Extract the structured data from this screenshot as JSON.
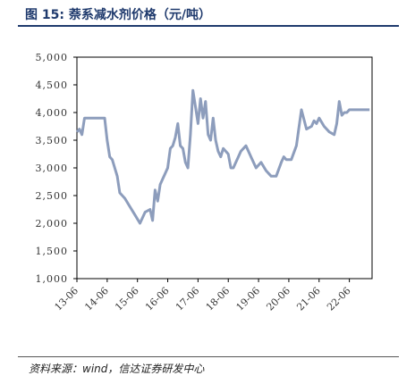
{
  "header": {
    "title": "图 15:  萘系减水剂价格（元/吨）"
  },
  "footer": {
    "source": "资料来源：wind，信达证券研发中心"
  },
  "colors": {
    "line": "#8d9dbc",
    "title": "#1f3a6d"
  },
  "chart_data": {
    "type": "line",
    "title": "",
    "xlabel": "",
    "ylabel": "",
    "grid": false,
    "legend": "none",
    "ylim": [
      1000,
      5000
    ],
    "yticks": [
      1000,
      1500,
      2000,
      2500,
      3000,
      3500,
      4000,
      4500,
      5000
    ],
    "ytick_labels": [
      "1,000",
      "1,500",
      "2,000",
      "2,500",
      "3,000",
      "3,500",
      "4,000",
      "4,500",
      "5,000"
    ],
    "xlim": [
      "2013-06",
      "2023-03"
    ],
    "xtick_labels": [
      "13-06",
      "14-06",
      "15-06",
      "16-06",
      "17-06",
      "18-06",
      "19-06",
      "20-06",
      "21-06",
      "22-06"
    ],
    "xtick_values": [
      "2013-06",
      "2014-06",
      "2015-06",
      "2016-06",
      "2017-06",
      "2018-06",
      "2019-06",
      "2020-06",
      "2021-06",
      "2022-06"
    ],
    "series": [
      {
        "x": [
          "2013-06",
          "2013-07",
          "2013-08",
          "2013-09",
          "2013-10",
          "2013-11",
          "2014-01",
          "2014-03",
          "2014-05",
          "2014-06",
          "2014-07",
          "2014-08",
          "2014-09",
          "2014-10",
          "2014-11",
          "2015-01",
          "2015-03",
          "2015-05",
          "2015-07",
          "2015-09",
          "2015-11",
          "2015-12",
          "2016-01",
          "2016-02",
          "2016-03",
          "2016-04",
          "2016-05",
          "2016-06",
          "2016-07",
          "2016-08",
          "2016-09",
          "2016-10",
          "2016-11",
          "2016-12",
          "2017-01",
          "2017-02",
          "2017-03",
          "2017-04",
          "2017-05",
          "2017-06",
          "2017-07",
          "2017-08",
          "2017-09",
          "2017-10",
          "2017-11",
          "2017-12",
          "2018-01",
          "2018-02",
          "2018-03",
          "2018-04",
          "2018-05",
          "2018-06",
          "2018-07",
          "2018-08",
          "2018-09",
          "2018-10",
          "2018-11",
          "2019-01",
          "2019-03",
          "2019-05",
          "2019-07",
          "2019-09",
          "2019-11",
          "2020-01",
          "2020-03",
          "2020-04",
          "2020-05",
          "2020-07",
          "2020-09",
          "2020-11",
          "2021-01",
          "2021-03",
          "2021-04",
          "2021-05",
          "2021-06",
          "2021-08",
          "2021-10",
          "2021-12",
          "2022-01",
          "2022-02",
          "2022-03",
          "2022-04",
          "2022-05",
          "2022-06",
          "2022-08",
          "2022-10",
          "2022-12",
          "2023-02"
        ],
        "values": [
          3650,
          3700,
          3600,
          3900,
          3900,
          3900,
          3900,
          3900,
          3900,
          3500,
          3200,
          3150,
          3000,
          2850,
          2550,
          2450,
          2300,
          2150,
          2000,
          2200,
          2250,
          2050,
          2600,
          2400,
          2700,
          2800,
          2900,
          3000,
          3350,
          3400,
          3550,
          3800,
          3400,
          3350,
          3100,
          3000,
          3600,
          4400,
          4100,
          3800,
          4250,
          3900,
          4200,
          3600,
          3500,
          3900,
          3500,
          3300,
          3200,
          3350,
          3300,
          3250,
          3000,
          3000,
          3100,
          3200,
          3300,
          3400,
          3200,
          3000,
          3100,
          2950,
          2850,
          2850,
          3100,
          3200,
          3150,
          3150,
          3400,
          4050,
          3700,
          3750,
          3850,
          3800,
          3900,
          3750,
          3650,
          3600,
          3800,
          4200,
          3950,
          4000,
          4000,
          4050,
          4050,
          4050,
          4050,
          4050
        ]
      }
    ]
  }
}
